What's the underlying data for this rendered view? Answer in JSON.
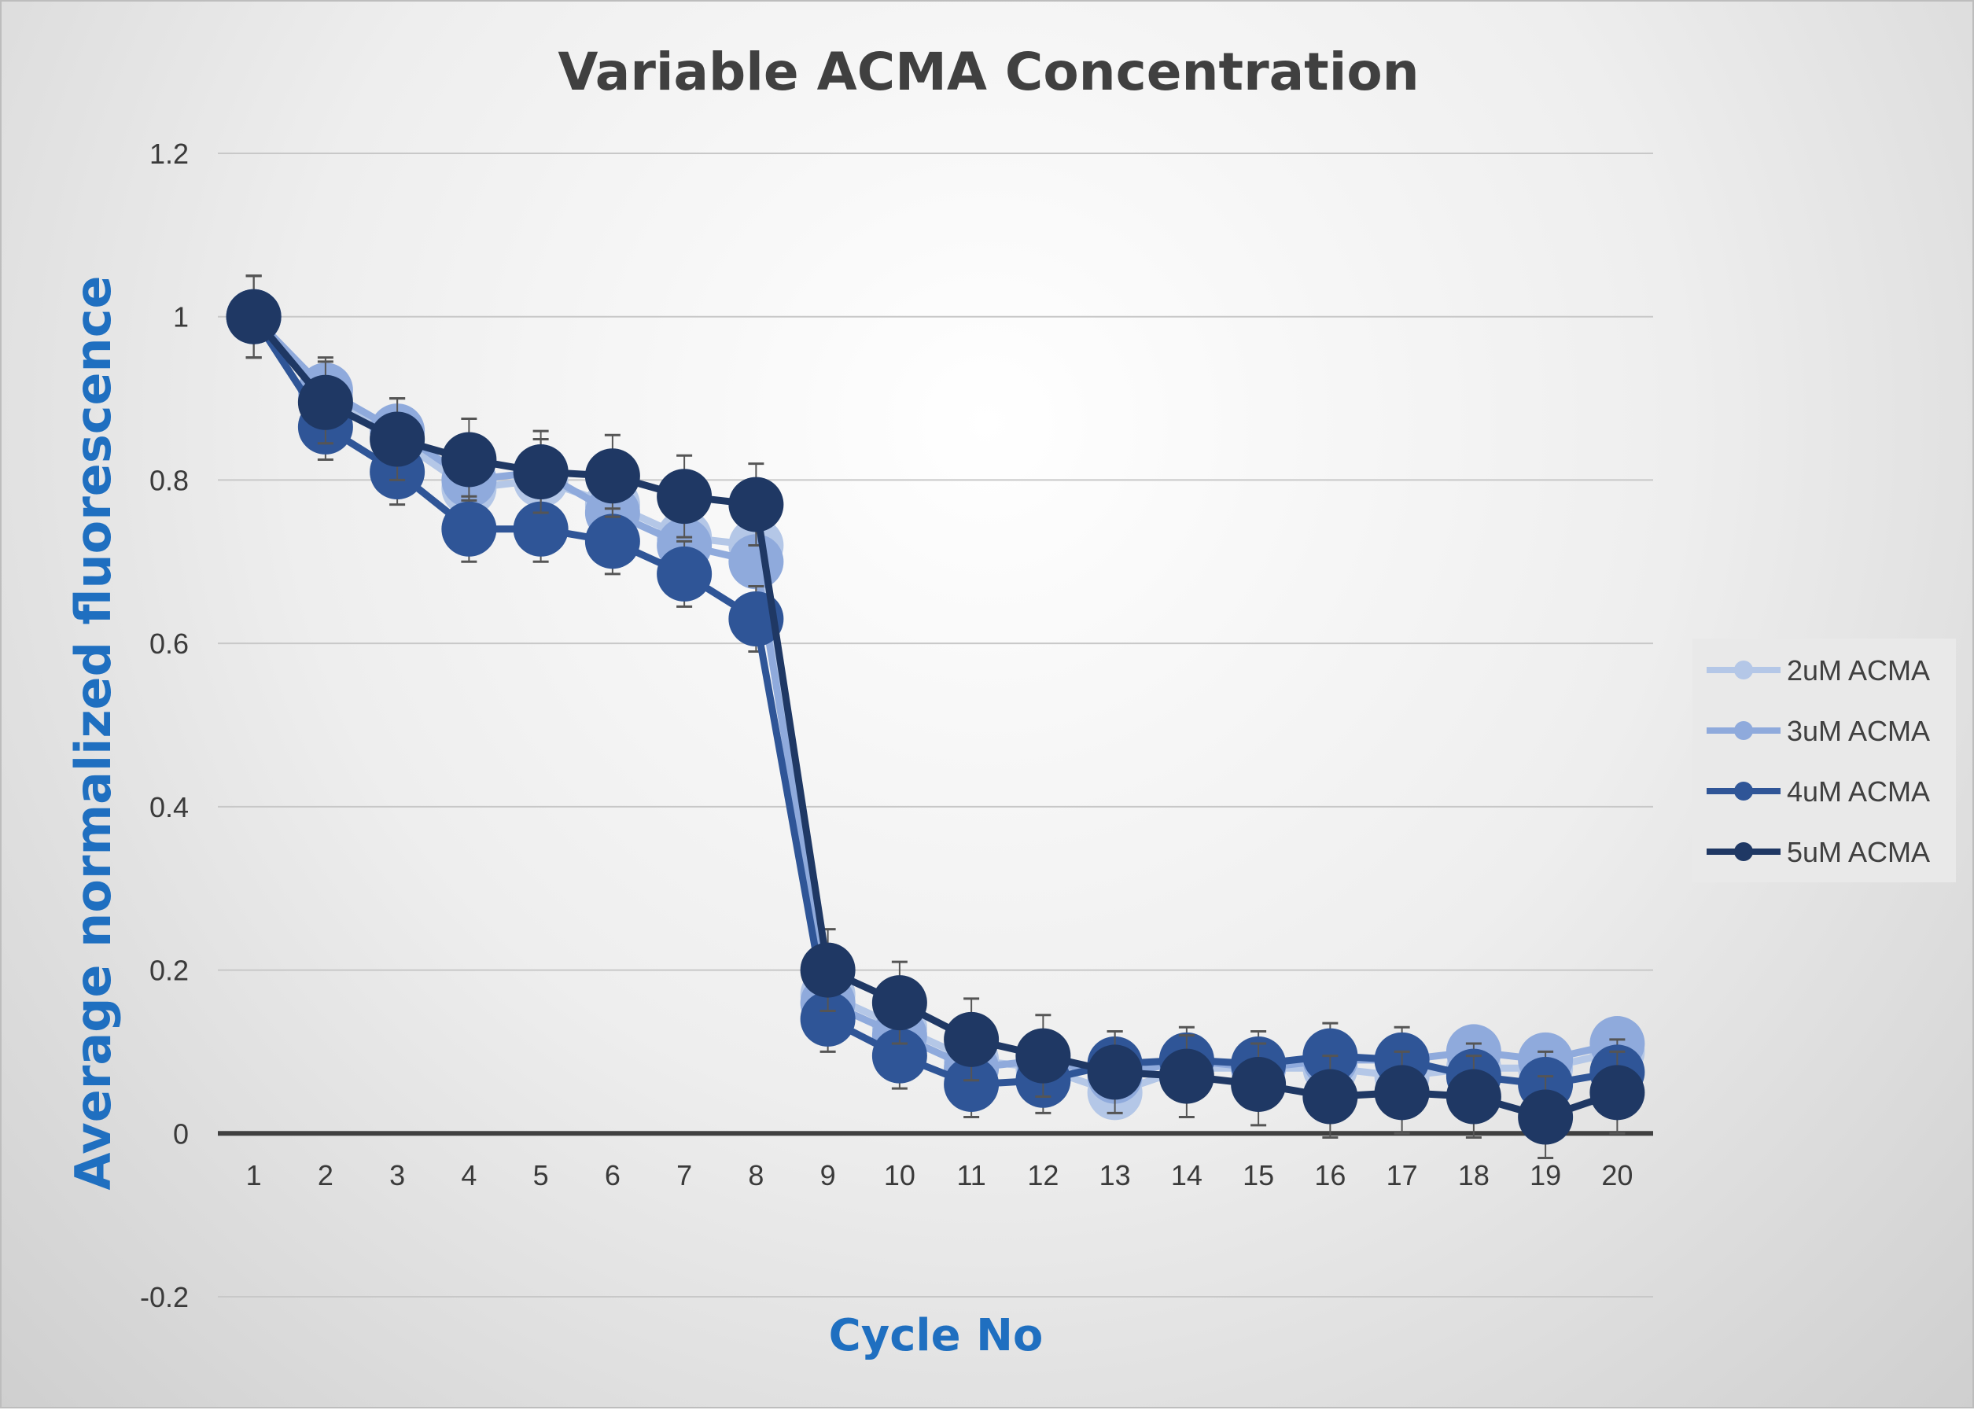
{
  "chart_data": {
    "type": "line",
    "title": "Variable ACMA Concentration",
    "xlabel": "Cycle No",
    "ylabel": "Average normalized fluorescence",
    "x": [
      1,
      2,
      3,
      4,
      5,
      6,
      7,
      8,
      9,
      10,
      11,
      12,
      13,
      14,
      15,
      16,
      17,
      18,
      19,
      20
    ],
    "ylim": [
      -0.2,
      1.2
    ],
    "yticks": [
      "-0.2",
      "0",
      "0.2",
      "0.4",
      "0.6",
      "0.8",
      "1",
      "1.2"
    ],
    "grid": true,
    "legend_position": "right",
    "series": [
      {
        "name": "2uM ACMA",
        "color": "#b4c7e7",
        "values": [
          1,
          0.9,
          0.85,
          0.79,
          0.8,
          0.77,
          0.73,
          0.72,
          0.17,
          0.13,
          0.09,
          0.08,
          0.05,
          0.08,
          0.08,
          0.08,
          0.07,
          0.08,
          0.08,
          0.1
        ],
        "errors": [
          0.05,
          0.04,
          0.04,
          0.04,
          0.04,
          0.04,
          0.04,
          0.04,
          0.03,
          0.03,
          0.03,
          0.03,
          0.03,
          0.03,
          0.03,
          0.03,
          0.03,
          0.03,
          0.03,
          0.03
        ]
      },
      {
        "name": "3uM ACMA",
        "color": "#8faadc",
        "values": [
          1,
          0.91,
          0.86,
          0.8,
          0.81,
          0.76,
          0.72,
          0.7,
          0.16,
          0.12,
          0.08,
          0.09,
          0.07,
          0.09,
          0.08,
          0.09,
          0.09,
          0.1,
          0.09,
          0.11
        ],
        "errors": [
          0.05,
          0.04,
          0.04,
          0.04,
          0.04,
          0.04,
          0.04,
          0.04,
          0.03,
          0.03,
          0.03,
          0.03,
          0.03,
          0.03,
          0.03,
          0.03,
          0.03,
          0.03,
          0.03,
          0.03
        ]
      },
      {
        "name": "4uM ACMA",
        "color": "#2f5597",
        "values": [
          1,
          0.865,
          0.81,
          0.74,
          0.74,
          0.725,
          0.685,
          0.63,
          0.14,
          0.095,
          0.06,
          0.065,
          0.085,
          0.09,
          0.085,
          0.095,
          0.09,
          0.07,
          0.06,
          0.075
        ],
        "errors": [
          0.05,
          0.04,
          0.04,
          0.04,
          0.04,
          0.04,
          0.04,
          0.04,
          0.04,
          0.04,
          0.04,
          0.04,
          0.04,
          0.04,
          0.04,
          0.04,
          0.04,
          0.04,
          0.04,
          0.04
        ]
      },
      {
        "name": "5uM ACMA",
        "color": "#1f3864",
        "values": [
          1,
          0.895,
          0.85,
          0.825,
          0.81,
          0.805,
          0.78,
          0.77,
          0.2,
          0.16,
          0.115,
          0.095,
          0.075,
          0.07,
          0.06,
          0.045,
          0.05,
          0.045,
          0.02,
          0.05
        ],
        "errors": [
          0.05,
          0.05,
          0.05,
          0.05,
          0.05,
          0.05,
          0.05,
          0.05,
          0.05,
          0.05,
          0.05,
          0.05,
          0.05,
          0.05,
          0.05,
          0.05,
          0.05,
          0.05,
          0.05,
          0.05
        ]
      }
    ]
  }
}
